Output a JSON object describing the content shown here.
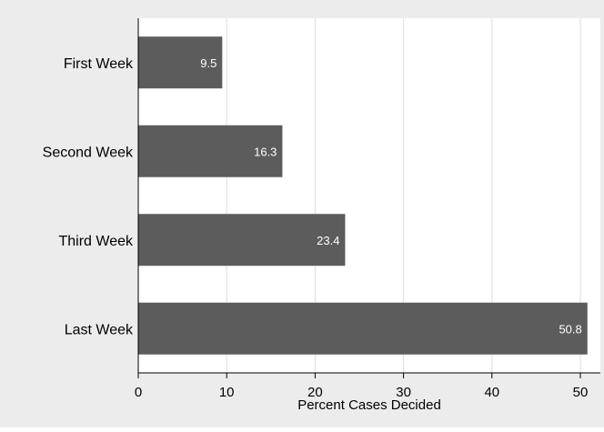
{
  "chart_data": {
    "type": "bar",
    "orientation": "horizontal",
    "categories": [
      "First Week",
      "Second Week",
      "Third Week",
      "Last Week"
    ],
    "values": [
      9.5,
      16.3,
      23.4,
      50.8
    ],
    "data_labels": [
      "9.5",
      "16.3",
      "23.4",
      "50.8"
    ],
    "title": "",
    "xlabel": "Percent Cases Decided",
    "ylabel": "",
    "xlim": [
      0,
      52
    ],
    "xticks": [
      0,
      10,
      20,
      30,
      40,
      50
    ],
    "grid": "vertical",
    "legend": "none",
    "colors": {
      "bar": "#5c5c5c",
      "background": "#ececec",
      "plot_background": "#ffffff",
      "gridline": "#dedede",
      "data_label": "#ffffff",
      "text": "#000000"
    }
  }
}
